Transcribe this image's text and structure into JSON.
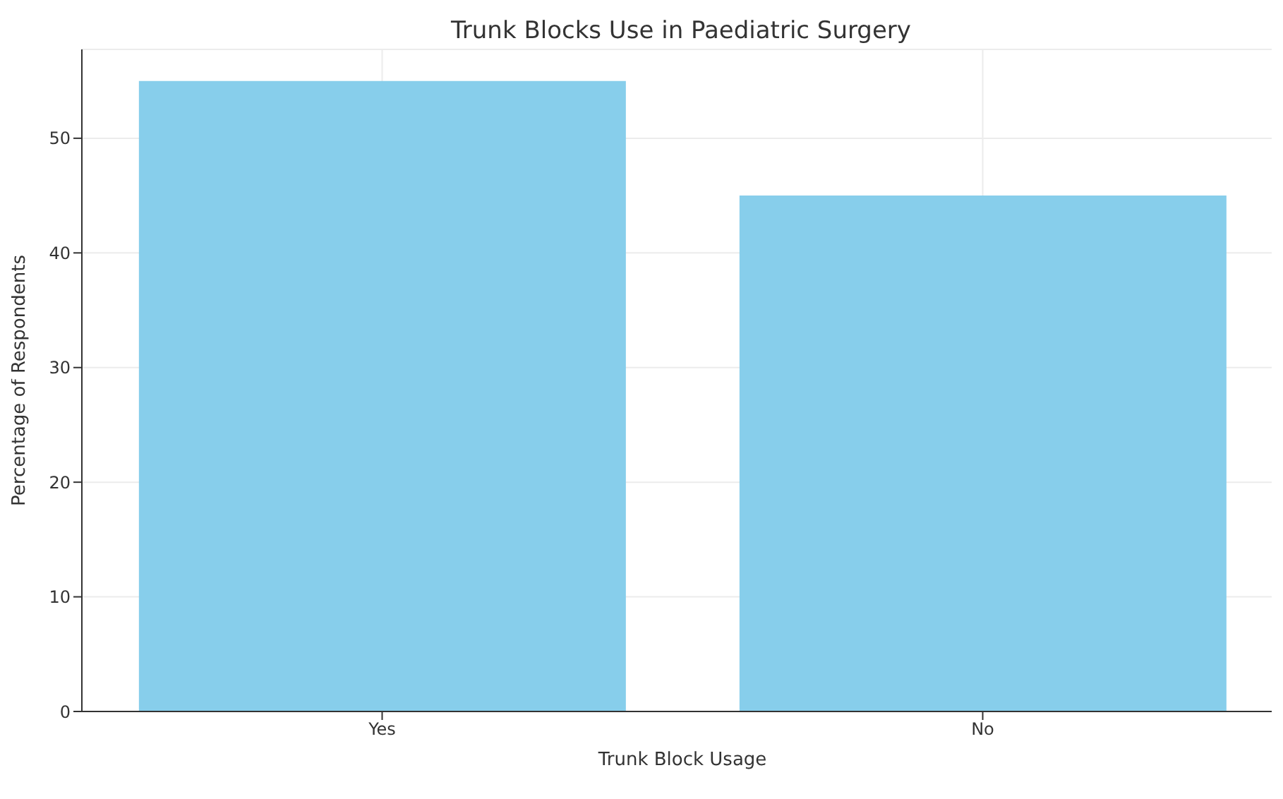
{
  "chart_data": {
    "type": "bar",
    "title": "Trunk Blocks Use in Paediatric Surgery",
    "xlabel": "Trunk Block Usage",
    "ylabel": "Percentage of Respondents",
    "categories": [
      "Yes",
      "No"
    ],
    "values": [
      55,
      45
    ],
    "color": "#87ceeb",
    "ylim": [
      0,
      57.75
    ],
    "yticks": [
      0,
      10,
      20,
      30,
      40,
      50
    ],
    "grid": true
  }
}
